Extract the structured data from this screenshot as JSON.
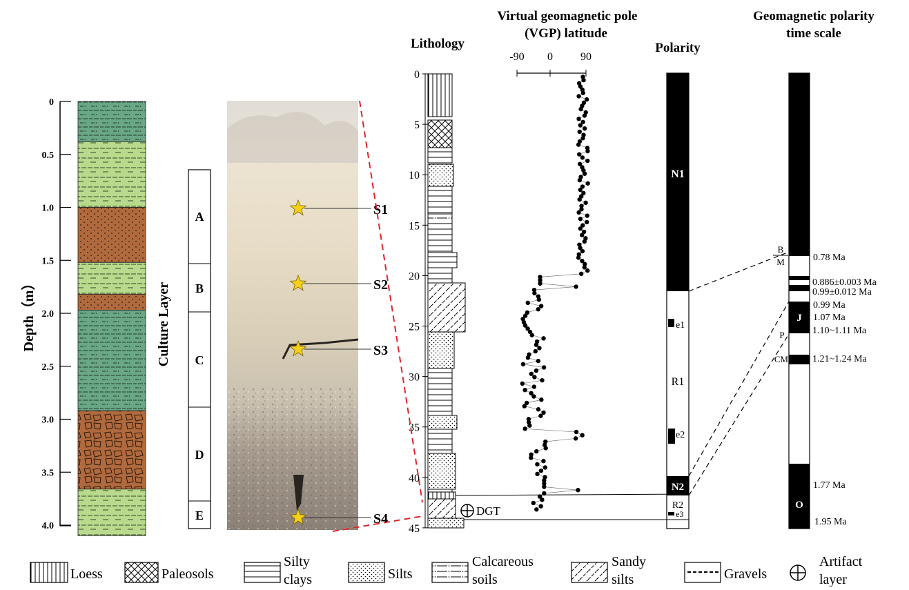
{
  "left_column": {
    "y_axis_title": "Depth（m）",
    "y_ticks": [
      "0",
      "0.5",
      "1.0",
      "1.5",
      "2.0",
      "2.5",
      "3.0",
      "3.5",
      "4.0"
    ],
    "y_tick_values": [
      0,
      0.5,
      1.0,
      1.5,
      2.0,
      2.5,
      3.0,
      3.5,
      4.0
    ],
    "layers": [
      {
        "top": 0.0,
        "bottom": 0.38,
        "type": "calcareous"
      },
      {
        "top": 0.38,
        "bottom": 1.0,
        "type": "silty-green"
      },
      {
        "top": 1.0,
        "bottom": 1.52,
        "type": "brown-dots"
      },
      {
        "top": 1.52,
        "bottom": 1.82,
        "type": "silty-green"
      },
      {
        "top": 1.82,
        "bottom": 1.97,
        "type": "brown-dots"
      },
      {
        "top": 1.97,
        "bottom": 2.92,
        "type": "calcareous"
      },
      {
        "top": 2.92,
        "bottom": 3.66,
        "type": "gravel-brown"
      },
      {
        "top": 3.66,
        "bottom": 4.1,
        "type": "silty-green"
      }
    ],
    "colors": {
      "green": "#6aa787",
      "light_green": "#b9da8c",
      "brown": "#b06a3e"
    }
  },
  "culture_layer": {
    "title": "Culture Layer",
    "labels": [
      "A",
      "B",
      "C",
      "D",
      "E"
    ]
  },
  "photo": {
    "samples": [
      "S1",
      "S2",
      "S3",
      "S4"
    ]
  },
  "headers": {
    "lithology": "Lithology",
    "vgp_line1": "Virtual geomagnetic pole",
    "vgp_line2": "(VGP) latitude",
    "polarity": "Polarity",
    "gpts_line1": "Geomagnetic polarity",
    "gpts_line2": "time scale"
  },
  "lithology": {
    "depth_ticks": [
      "0",
      "5",
      "10",
      "15",
      "20",
      "25",
      "30",
      "35",
      "40",
      "45"
    ],
    "depth_values": [
      0,
      5,
      10,
      15,
      20,
      25,
      30,
      35,
      40,
      45
    ]
  },
  "vgp": {
    "x_ticks": [
      "-90",
      "0",
      "90"
    ],
    "x_values": [
      -90,
      0,
      90
    ]
  },
  "polarity": {
    "labels": [
      "N1",
      "e1",
      "R1",
      "e2",
      "N2",
      "R2",
      "e3"
    ]
  },
  "gpts": {
    "chron_labels": [
      "B",
      "M",
      "J",
      "P",
      "CM",
      "O"
    ],
    "ages": [
      "0.78 Ma",
      "0.886±0.003 Ma",
      "0.99±0.012 Ma",
      "0.99 Ma",
      "1.07 Ma",
      "1.10~1.11 Ma",
      "1.21~1.24 Ma",
      "1.77 Ma",
      "1.95 Ma"
    ]
  },
  "artifact": {
    "label": "DGT"
  },
  "legend": {
    "loess": "Loess",
    "paleosols": "Paleosols",
    "silty_clays_1": "Silty",
    "silty_clays_2": "clays",
    "silts": "Silts",
    "calcareous_1": "Calcareous",
    "calcareous_2": "soils",
    "sandy_1": "Sandy",
    "sandy_2": "silts",
    "gravels": "Gravels",
    "artifact_1": "Artifact",
    "artifact_2": "layer"
  }
}
